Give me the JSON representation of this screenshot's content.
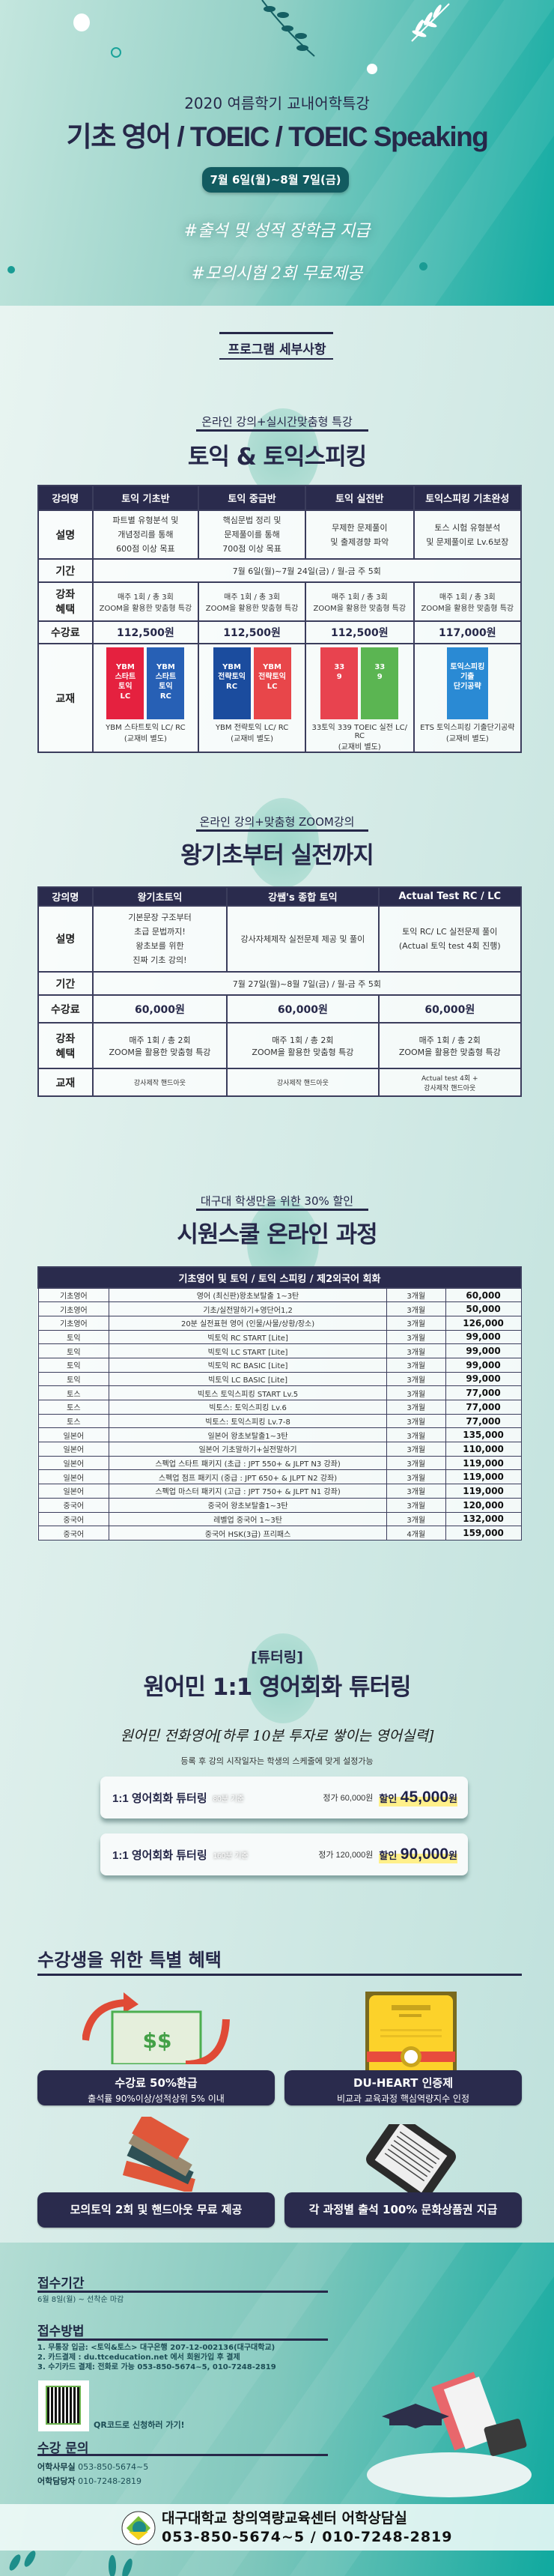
{
  "colors": {
    "navy": "#2a2b4d",
    "teal": "#10aba2",
    "pill": "#125b60",
    "highlight": "#fff08a"
  },
  "hero": {
    "subtitle": "2020 여름학기 교내어학특강",
    "title": "기초 영어 / TOEIC / TOEIC Speaking",
    "date": "7월 6일(월)~8월 7일(금)",
    "hashtags": [
      "#출석 및 성적 장학금 지급",
      "#모의시험 2회 무료제공"
    ]
  },
  "program_heading": "프로그램 세부사항",
  "toeic": {
    "subtitle": "온라인 강의+실시간맞춤형 특강",
    "title": "토익 & 토익스피킹",
    "headers": [
      "강의명",
      "토익 기초반",
      "토익 중급반",
      "토익 실전반",
      "토익스피킹 기초완성"
    ],
    "row_labels": {
      "desc": "설명",
      "period": "기간",
      "benefit": "강좌\n혜택",
      "fee": "수강료",
      "book": "교재"
    },
    "desc": [
      "파트별 유형분석 및\n개념정리를 통해\n600점 이상 목표",
      "핵심문법 정리 및\n문제풀이를 통해\n700점 이상 목표",
      "무제한 문제풀이\n및 출제경향 파악",
      "토스 시험 유형분석\n및 문제풀이로 Lv.6보장"
    ],
    "period": "7월 6일(월)~7월 24일(금) / 월-금  주 5회",
    "benefit": [
      "매주 1회 / 총 3회\nZOOM을 활용한 맞춤형 특강",
      "매주 1회 / 총 3회\nZOOM을 활용한 맞춤형 특강",
      "매주 1회 / 총 3회\nZOOM을 활용한 맞춤형 특강",
      "매주 1회 / 총 3회\nZOOM을 활용한 맞춤형 특강"
    ],
    "fee": [
      "112,500원",
      "112,500원",
      "112,500원",
      "117,000원"
    ],
    "books": [
      {
        "covers": [
          {
            "text": "YBM\n스타트\n토익\nLC",
            "color": "#e5213f"
          },
          {
            "text": "YBM\n스타트\n토익\nRC",
            "color": "#2760b5"
          }
        ],
        "caption": "YBM 스타트토익 LC/ RC\n(교재비 별도)"
      },
      {
        "covers": [
          {
            "text": "YBM\n전략토익\nRC",
            "color": "#1b4c9e"
          },
          {
            "text": "YBM\n전략토익\nLC",
            "color": "#e8464a"
          }
        ],
        "caption": "YBM 전략토익 LC/ RC\n(교재비 별도)"
      },
      {
        "covers": [
          {
            "text": "33\n9",
            "color": "#e8434f"
          },
          {
            "text": "33\n9",
            "color": "#5bb552"
          }
        ],
        "caption": "33토익 339 TOEIC 실전 LC/ RC\n(교재비 별도)"
      },
      {
        "covers": [
          {
            "text": "토익스피킹\n기출\n단기공략",
            "color": "#2a8ad4"
          }
        ],
        "caption": "ETS 토익스피킹 기출단기공략\n(교재비 별도)"
      }
    ]
  },
  "basic": {
    "subtitle": "온라인 강의+맞춤형 ZOOM강의",
    "title": "왕기초부터 실전까지",
    "headers": [
      "강의명",
      "왕기초토익",
      "강쌤's 종합 토익",
      "Actual Test RC / LC"
    ],
    "row_labels": {
      "desc": "설명",
      "period": "기간",
      "fee": "수강료",
      "benefit": "강좌\n혜택",
      "book": "교재"
    },
    "desc": [
      "기본문장 구조부터\n초급 문법까지!\n왕초보를 위한\n진짜 기초 강의!",
      "강사자체제작 실전문제 제공 및 풀이",
      "토익 RC/ LC 실전문제 풀이\n(Actual 토익 test 4회 진행)"
    ],
    "period": "7월 27일(월)~8월 7일(금) / 월-금  주 5회",
    "fee": [
      "60,000원",
      "60,000원",
      "60,000원"
    ],
    "benefit": [
      "매주 1회 / 총 2회\nZOOM을 활용한 맞춤형 특강",
      "매주 1회 / 총 2회\nZOOM을 활용한 맞춤형 특강",
      "매주 1회 / 총 2회\nZOOM을 활용한 맞춤형 특강"
    ],
    "book": [
      "강사제작 핸드아웃",
      "강사제작 핸드아웃",
      "Actual test 4회 +\n강사제작 핸드아웃"
    ]
  },
  "online": {
    "subtitle": "대구대 학생만을 위한 30% 할인",
    "title": "시원스쿨 온라인 과정",
    "header": "기초영어 및 토익 / 토익 스피킹 / 제2외국어 회화",
    "rows": [
      [
        "기초영어",
        "영어 (최신판)왕초보탈출 1~3탄",
        "3개월",
        "60,000"
      ],
      [
        "기초영어",
        "기초/실전말하기+영단어1,2",
        "3개월",
        "50,000"
      ],
      [
        "기초영어",
        "20분 실전표현 영어 (인물/사물/상황/장소)",
        "3개월",
        "126,000"
      ],
      [
        "토익",
        "빅토익 RC START [Lite]",
        "3개월",
        "99,000"
      ],
      [
        "토익",
        "빅토익 LC START [Lite]",
        "3개월",
        "99,000"
      ],
      [
        "토익",
        "빅토익 RC BASIC [Lite]",
        "3개월",
        "99,000"
      ],
      [
        "토익",
        "빅토익 LC BASIC [Lite]",
        "3개월",
        "99,000"
      ],
      [
        "토스",
        "빅토스 토익스피킹 START Lv.5",
        "3개월",
        "77,000"
      ],
      [
        "토스",
        "빅토스: 토익스피킹 Lv.6",
        "3개월",
        "77,000"
      ],
      [
        "토스",
        "빅토스: 토익스피킹 Lv.7-8",
        "3개월",
        "77,000"
      ],
      [
        "일본어",
        "일본어 왕초보탈출1~3탄",
        "3개월",
        "135,000"
      ],
      [
        "일본어",
        "일본어 기초말하기+실전말하기",
        "3개월",
        "110,000"
      ],
      [
        "일본어",
        "스펙업 스타트 패키지 (초급 : JPT 550+ & JLPT N3 강좌)",
        "3개월",
        "119,000"
      ],
      [
        "일본어",
        "스펙업 점프 패키지 (중급 : JPT 650+ & JLPT N2 강좌)",
        "3개월",
        "119,000"
      ],
      [
        "일본어",
        "스펙업 마스터 패키지 (고급 : JPT 750+ & JLPT N1 강좌)",
        "3개월",
        "119,000"
      ],
      [
        "중국어",
        "중국어 왕초보탈출1~3탄",
        "3개월",
        "120,000"
      ],
      [
        "중국어",
        "레벨업 중국어 1~3탄",
        "3개월",
        "132,000"
      ],
      [
        "중국어",
        "중국어 HSK(3급) 프리패스",
        "4개월",
        "159,000"
      ]
    ]
  },
  "tutoring": {
    "tag": "[튜터링]",
    "title": "원어민 1:1 영어회화 튜터링",
    "slogan": "원어민 전화영어[하루 10분 투자로 쌓이는 영어실력]",
    "note": "등록 후 강의 시작일자는 학생의 스케줄에 맞게 설정가능",
    "plans": [
      {
        "name": "1:1 영어회화 튜터링",
        "basis": "80분 기준",
        "regular": "정가 60,000원",
        "sale_label": "할인",
        "sale_amount": "45,000",
        "unit": "원"
      },
      {
        "name": "1:1 영어회화 튜터링",
        "basis": "160분 기준",
        "regular": "정가 120,000원",
        "sale_label": "할인",
        "sale_amount": "90,000",
        "unit": "원"
      }
    ]
  },
  "benefits": {
    "title": "수강생을 위한 특별 혜택",
    "items": [
      {
        "icon": "money-refund-icon",
        "title": "수강료 50%환급",
        "sub": "출석률 90%이상/성적상위 5% 이내"
      },
      {
        "icon": "certificate-icon",
        "title": "DU-HEART 인증제",
        "sub": "비교과 교육과정 핵심역량지수 인정"
      },
      {
        "icon": "books-icon",
        "title": "모의토익 2회 및 핸드아웃 무료 제공"
      },
      {
        "icon": "tablet-icon",
        "title": "각 과정별 출석 100% 문화상품권 지급"
      }
    ],
    "money_symbol": "$$"
  },
  "info": {
    "period_title": "접수기간",
    "period": "6월 8일(월) ~ 선착순 마감",
    "method_title": "접수방법",
    "methods": [
      "1. 무통장 입금: <토익&토스> 대구은행 207-12-002136(대구대학교)",
      "2. 카드결제 : du.ttceducation.net 에서 회원가입 후 결제",
      "3. 수기카드 결제: 전화로 가능 053-850-5674~5, 010-7248-2819"
    ],
    "qr_label": "QR코드로 신청하러 가기!",
    "contact_title": "수강 문의",
    "contacts": [
      {
        "label": "어학사무실",
        "value": "053-850-5674~5"
      },
      {
        "label": "어학담당자",
        "value": "010-7248-2819"
      }
    ]
  },
  "footer": {
    "org": "대구대학교 창의역량교육센터 어학상담실",
    "phones": "053-850-5674~5 / 010-7248-2819",
    "logo_text": "DAEGU UNIVERSITY"
  }
}
